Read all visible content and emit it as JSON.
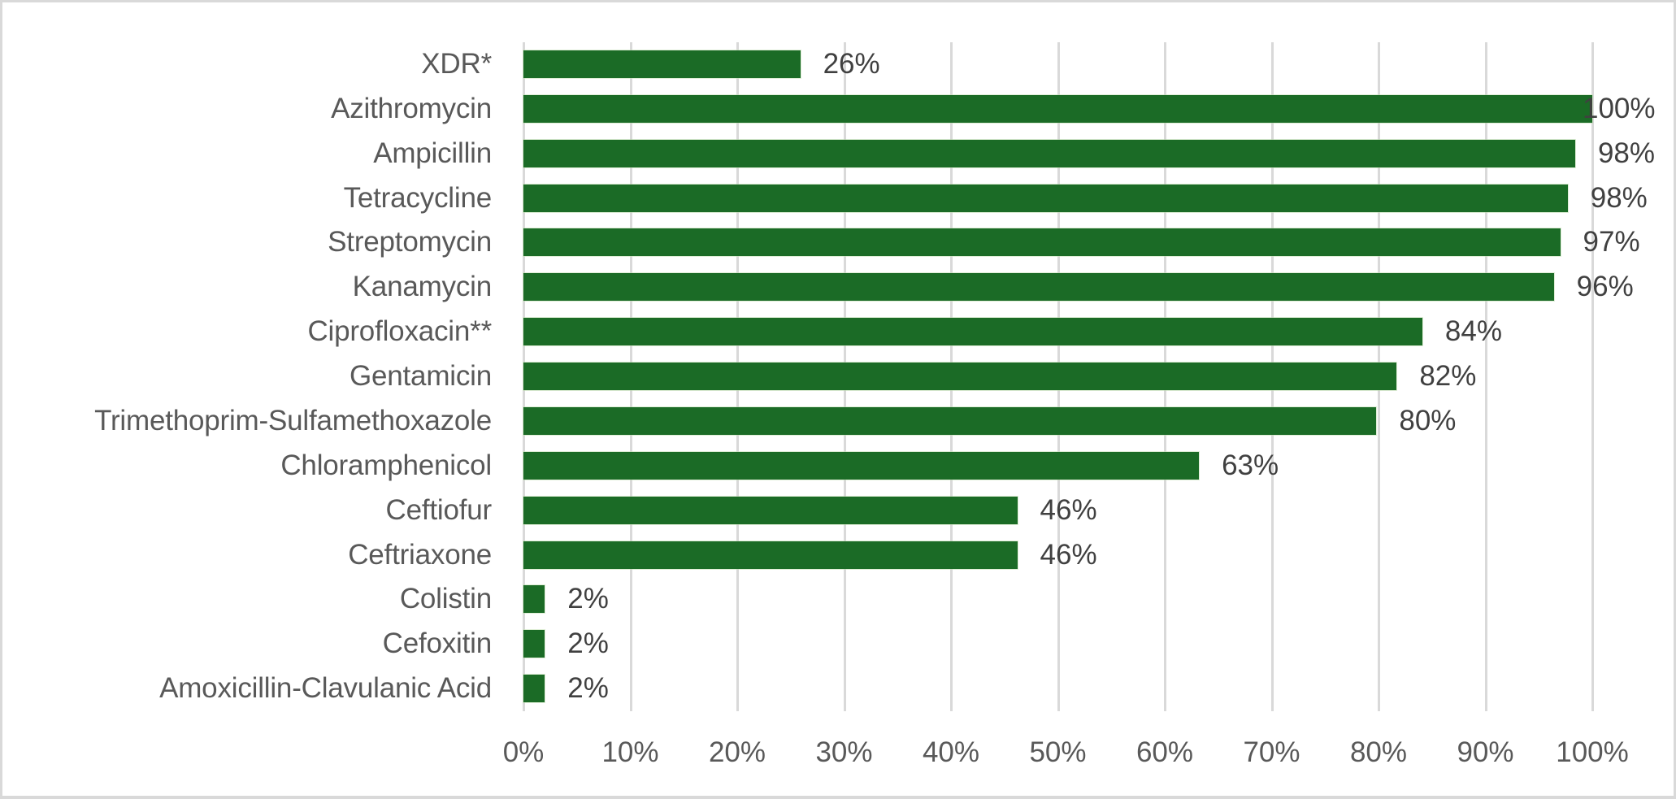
{
  "chart_data": {
    "type": "bar",
    "orientation": "horizontal",
    "title": "",
    "xlabel": "",
    "ylabel": "",
    "xlim": [
      0,
      100
    ],
    "grid": "vertical",
    "legend": "none",
    "bar_color": "#1b6b26",
    "categories": [
      "XDR*",
      "Azithromycin",
      "Ampicillin",
      "Tetracycline",
      "Streptomycin",
      "Kanamycin",
      "Ciprofloxacin**",
      "Gentamicin",
      "Trimethoprim-Sulfamethoxazole",
      "Chloramphenicol",
      "Ceftiofur",
      "Ceftriaxone",
      "Colistin",
      "Cefoxitin",
      "Amoxicillin-Clavulanic Acid"
    ],
    "values": [
      26,
      100,
      98,
      98,
      97,
      96,
      84,
      82,
      80,
      63,
      46,
      46,
      2,
      2,
      2
    ],
    "bar_values_precise": [
      25.9,
      100,
      98.4,
      97.7,
      97.0,
      96.4,
      84.1,
      81.7,
      79.8,
      63.2,
      46.2,
      46.2,
      2.0,
      2.0,
      2.0
    ],
    "data_labels": [
      "26%",
      "100%",
      "98%",
      "98%",
      "97%",
      "96%",
      "84%",
      "82%",
      "80%",
      "63%",
      "46%",
      "46%",
      "2%",
      "2%",
      "2%"
    ],
    "x_ticks": [
      0,
      10,
      20,
      30,
      40,
      50,
      60,
      70,
      80,
      90,
      100
    ],
    "x_tick_labels": [
      "0%",
      "10%",
      "20%",
      "30%",
      "40%",
      "50%",
      "60%",
      "70%",
      "80%",
      "90%",
      "100%"
    ]
  },
  "colors": {
    "bar": "#1b6b26",
    "gridline": "#d9d9d9",
    "frame_border": "#d9d9d9",
    "category_text": "#595959",
    "data_label_text": "#404040",
    "tick_text": "#595959"
  }
}
